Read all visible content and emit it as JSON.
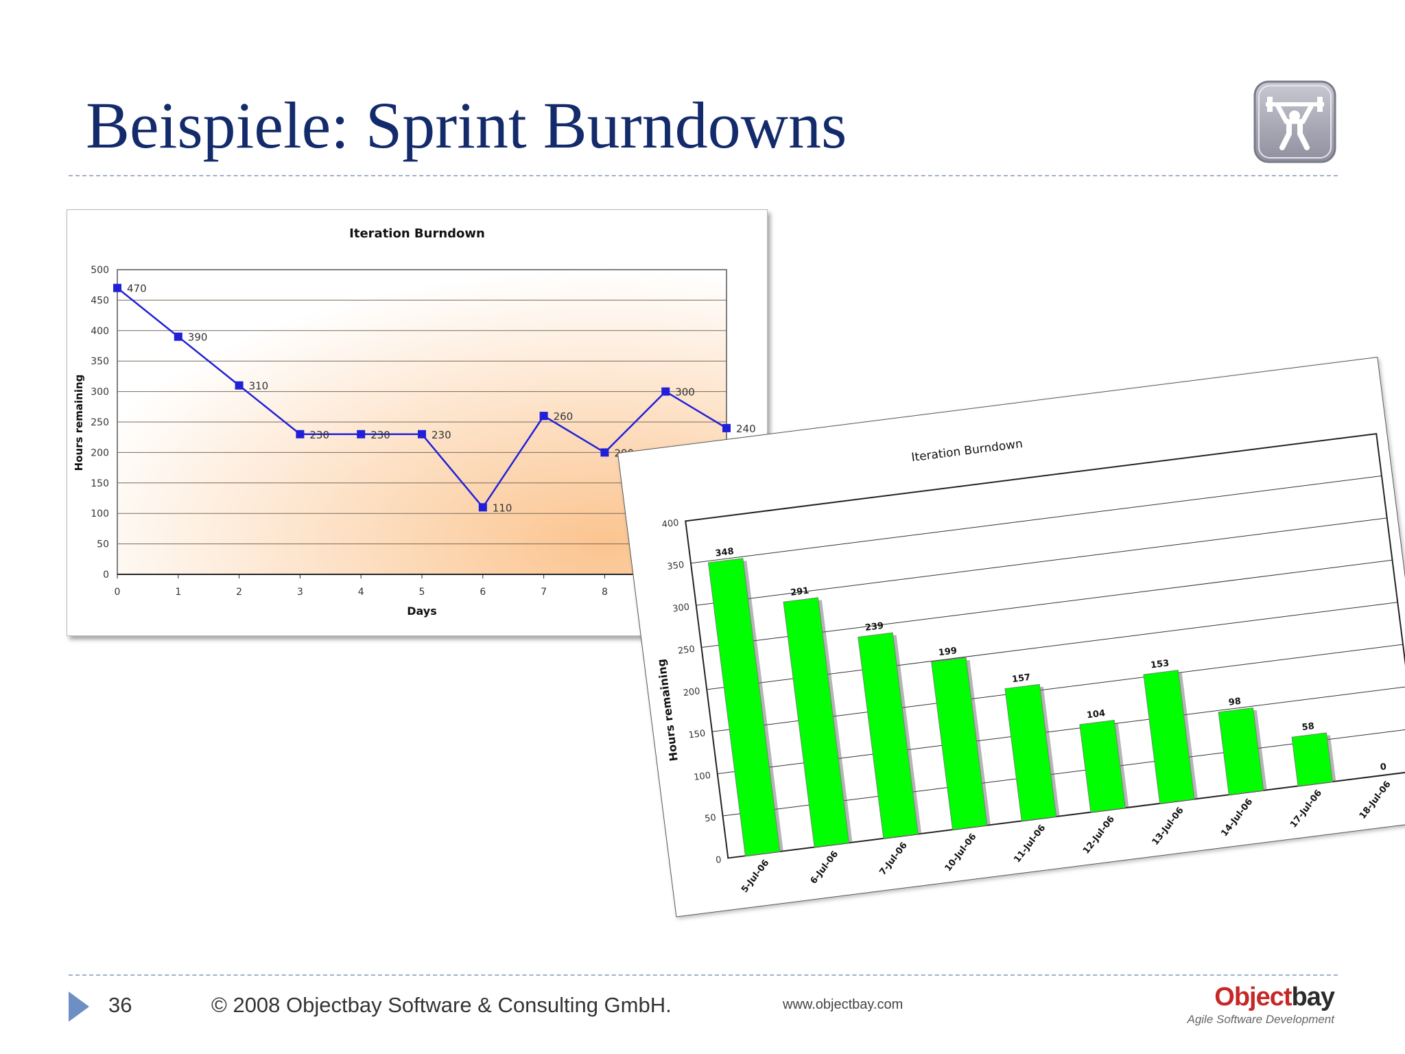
{
  "slide": {
    "title": "Beispiele: Sprint Burndowns",
    "page_number": "36",
    "copyright": "© 2008  Objectbay Software & Consulting GmbH.",
    "url": "www.objectbay.com",
    "brand_name_left": "Object",
    "brand_name_right": "bay",
    "brand_tagline": "Agile Software Development",
    "icon": "weightlifter-icon"
  },
  "colors": {
    "title": "#132a6b",
    "line": "#2020d8",
    "bar": "#00ff00",
    "plot_bg_from": "#ffffff",
    "plot_bg_to": "#fbc48f",
    "accent": "#6d8fc4"
  },
  "chart_data": [
    {
      "type": "line",
      "title": "Iteration Burndown",
      "xlabel": "Days",
      "ylabel": "Hours remaining",
      "x": [
        0,
        1,
        2,
        3,
        4,
        5,
        6,
        7,
        8,
        9,
        10
      ],
      "y": [
        470,
        390,
        310,
        230,
        230,
        230,
        110,
        260,
        200,
        300,
        240
      ],
      "data_labels": [
        "470",
        "390",
        "310",
        "230",
        "230",
        "230",
        "110",
        "260",
        "200",
        "300",
        "240"
      ],
      "x_ticks": [
        "0",
        "1",
        "2",
        "3",
        "4",
        "5",
        "6",
        "7",
        "8"
      ],
      "y_ticks": [
        "0",
        "50",
        "100",
        "150",
        "200",
        "250",
        "300",
        "350",
        "400",
        "450",
        "500"
      ],
      "ylim": [
        0,
        500
      ],
      "grid": true,
      "legend": "none"
    },
    {
      "type": "bar",
      "title": "Iteration Burndown",
      "xlabel": "",
      "ylabel": "Hours remaining",
      "categories": [
        "5-Jul-06",
        "6-Jul-06",
        "7-Jul-06",
        "10-Jul-06",
        "11-Jul-06",
        "12-Jul-06",
        "13-Jul-06",
        "14-Jul-06",
        "17-Jul-06",
        "18-Jul-06"
      ],
      "values": [
        348,
        291,
        239,
        199,
        157,
        104,
        153,
        98,
        58,
        0
      ],
      "y_ticks": [
        "0",
        "50",
        "100",
        "150",
        "200",
        "250",
        "300",
        "350",
        "400"
      ],
      "ylim": [
        0,
        400
      ],
      "grid": true,
      "legend": "none"
    }
  ]
}
